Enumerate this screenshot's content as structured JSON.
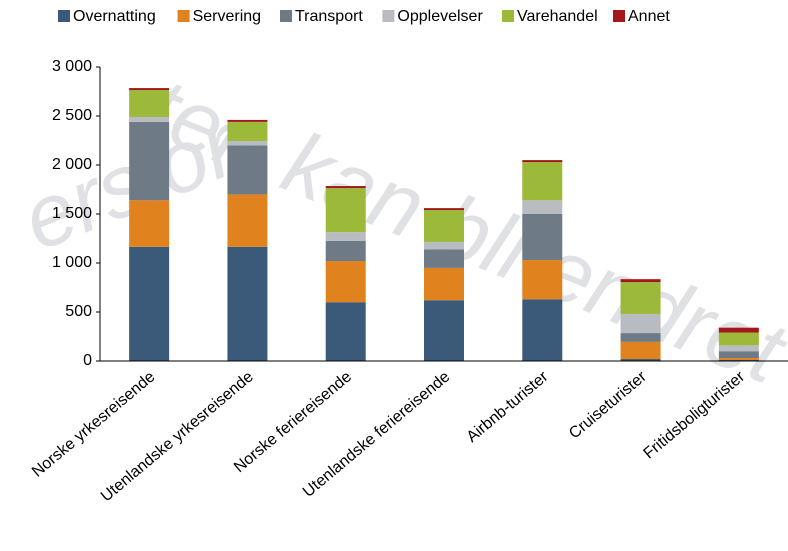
{
  "chart_data": {
    "type": "stacked-bar",
    "categories": [
      "Norske yrkesreisende",
      "Utenlandske yrkesreisende",
      "Norske feriereisende",
      "Utenlandske feriereisende",
      "Airbnb-turister",
      "Cruiseturister",
      "Fritidsboligturister"
    ],
    "series": [
      {
        "name": "Overnatting",
        "color": "#3b5a7a",
        "values": [
          1165,
          1165,
          600,
          620,
          630,
          20,
          10
        ]
      },
      {
        "name": "Servering",
        "color": "#e0821e",
        "values": [
          475,
          535,
          420,
          330,
          400,
          175,
          20
        ]
      },
      {
        "name": "Transport",
        "color": "#6e7b87",
        "values": [
          800,
          500,
          205,
          190,
          470,
          90,
          70
        ]
      },
      {
        "name": "Opplevelser",
        "color": "#b8bcc0",
        "values": [
          50,
          45,
          90,
          75,
          140,
          195,
          60
        ]
      },
      {
        "name": "Varehandel",
        "color": "#9cb93a",
        "values": [
          275,
          195,
          450,
          325,
          390,
          325,
          130
        ]
      },
      {
        "name": "Annet",
        "color": "#a3191b",
        "values": [
          20,
          20,
          20,
          20,
          20,
          30,
          50
        ]
      }
    ],
    "ylim": [
      0,
      3000
    ],
    "yticks": [
      0,
      500,
      {
        "value": 1000,
        "label": "1 000"
      },
      {
        "value": 1500,
        "label": "1 500"
      },
      {
        "value": 2000,
        "label": "2 000"
      },
      {
        "value": 2500,
        "label": "2 500"
      },
      {
        "value": 3000,
        "label": "3 000"
      }
    ],
    "annotations": [
      "ten kan bli endret i",
      "ersjon"
    ]
  }
}
